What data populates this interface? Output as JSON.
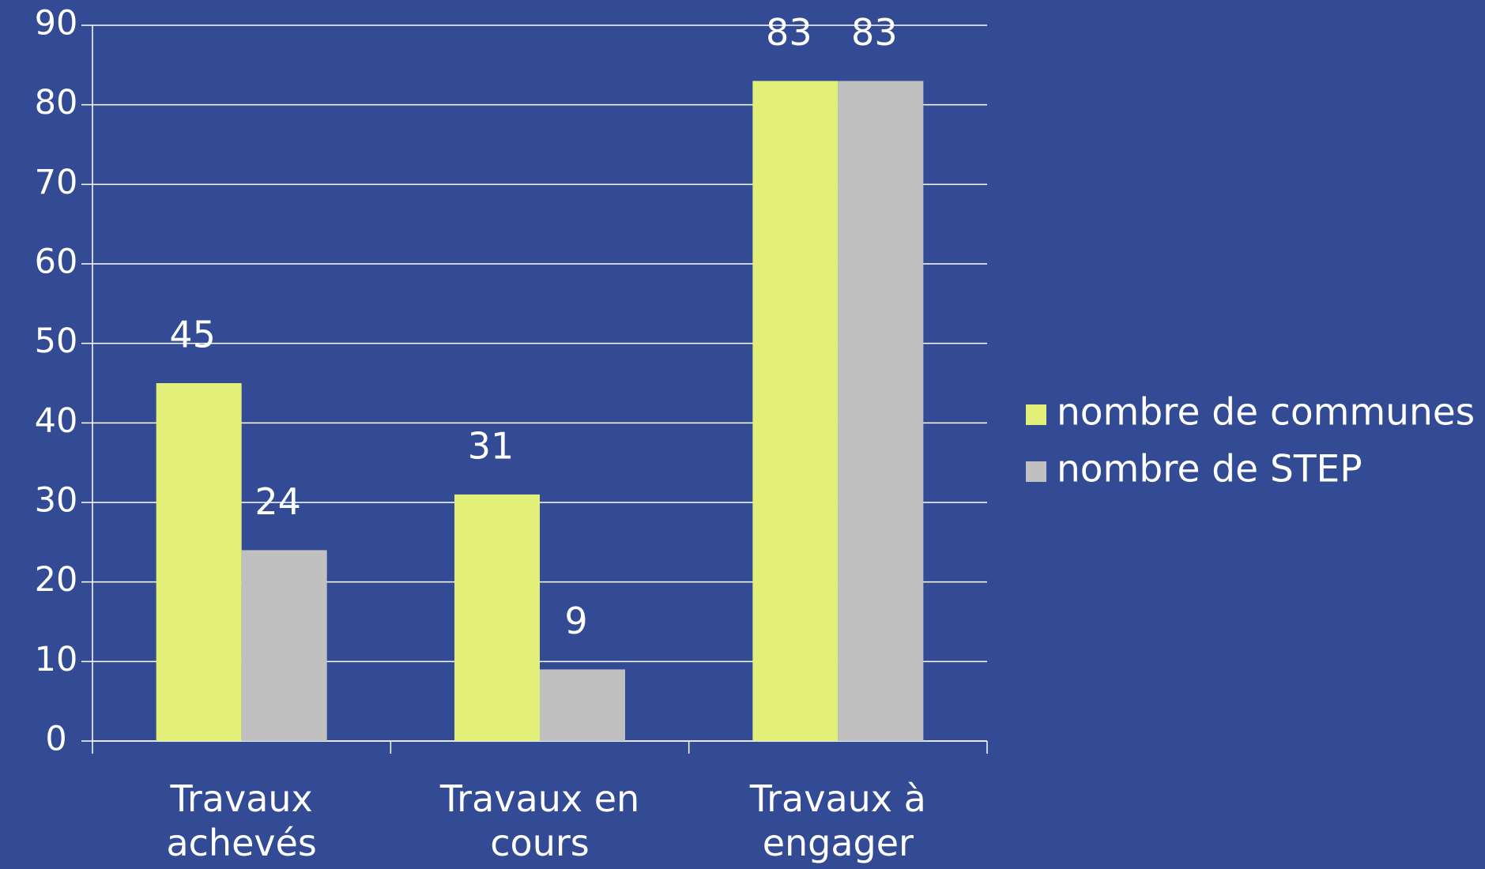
{
  "chart_data": {
    "type": "bar",
    "categories": [
      "Travaux achevés",
      "Travaux en cours",
      "Travaux à engager"
    ],
    "series": [
      {
        "name": "nombre de communes",
        "color": "#e2f07a",
        "values": [
          45,
          31,
          83
        ]
      },
      {
        "name": "nombre de STEP",
        "color": "#c0c0c0",
        "values": [
          24,
          9,
          83
        ]
      }
    ],
    "ylim": [
      0,
      90
    ],
    "yticks": [
      0,
      10,
      20,
      30,
      40,
      50,
      60,
      70,
      80,
      90
    ],
    "grid": true,
    "legend": "right",
    "background": "#334b94"
  }
}
